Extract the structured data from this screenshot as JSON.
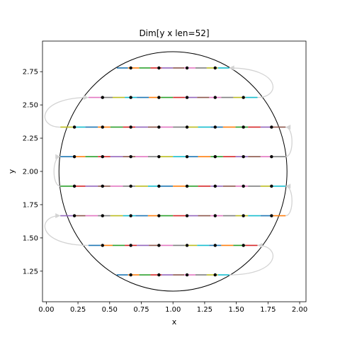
{
  "chart_data": {
    "type": "scatter",
    "title": "Dim[y x len=52]",
    "xlabel": "x",
    "ylabel": "y",
    "xlim": [
      -0.03,
      2.05
    ],
    "ylim": [
      1.02,
      2.98
    ],
    "xticks": [
      0.0,
      0.25,
      0.5,
      0.75,
      1.0,
      1.25,
      1.5,
      1.75,
      2.0
    ],
    "xtick_labels": [
      "0.00",
      "0.25",
      "0.50",
      "0.75",
      "1.00",
      "1.25",
      "1.50",
      "1.75",
      "2.00"
    ],
    "yticks": [
      1.25,
      1.5,
      1.75,
      2.0,
      2.25,
      2.5,
      2.75
    ],
    "ytick_labels": [
      "1.25",
      "1.50",
      "1.75",
      "2.00",
      "2.25",
      "2.50",
      "2.75"
    ],
    "grid": false,
    "circle": {
      "cx": 1.0,
      "cy": 2.0,
      "r": 0.9
    },
    "segment_colors": [
      "#1f77b4",
      "#ff7f0e",
      "#2ca02c",
      "#d62728",
      "#9467bd",
      "#8c564b",
      "#e377c2",
      "#7f7f7f",
      "#bcbd22",
      "#17becf"
    ],
    "connector_color": "#d3d3d3",
    "rows": [
      {
        "y": 1.222,
        "x_start": 0.556,
        "x_end": 1.444,
        "points": [
          0.667,
          0.889,
          1.111,
          1.333
        ]
      },
      {
        "y": 1.444,
        "x_start": 0.333,
        "x_end": 1.667,
        "points": [
          0.444,
          0.667,
          0.889,
          1.111,
          1.333,
          1.556
        ]
      },
      {
        "y": 1.667,
        "x_start": 0.111,
        "x_end": 1.889,
        "points": [
          0.222,
          0.444,
          0.667,
          0.889,
          1.111,
          1.333,
          1.556,
          1.778
        ]
      },
      {
        "y": 1.889,
        "x_start": 0.111,
        "x_end": 1.889,
        "points": [
          0.222,
          0.444,
          0.667,
          0.889,
          1.111,
          1.333,
          1.556,
          1.778
        ]
      },
      {
        "y": 2.111,
        "x_start": 0.111,
        "x_end": 1.889,
        "points": [
          0.222,
          0.444,
          0.667,
          0.889,
          1.111,
          1.333,
          1.556,
          1.778
        ]
      },
      {
        "y": 2.333,
        "x_start": 0.111,
        "x_end": 1.889,
        "points": [
          0.222,
          0.444,
          0.667,
          0.889,
          1.111,
          1.333,
          1.556,
          1.778
        ]
      },
      {
        "y": 2.556,
        "x_start": 0.333,
        "x_end": 1.667,
        "points": [
          0.444,
          0.667,
          0.889,
          1.111,
          1.333,
          1.556
        ]
      },
      {
        "y": 2.778,
        "x_start": 0.556,
        "x_end": 1.444,
        "points": [
          0.667,
          0.889,
          1.111,
          1.333
        ]
      }
    ]
  }
}
